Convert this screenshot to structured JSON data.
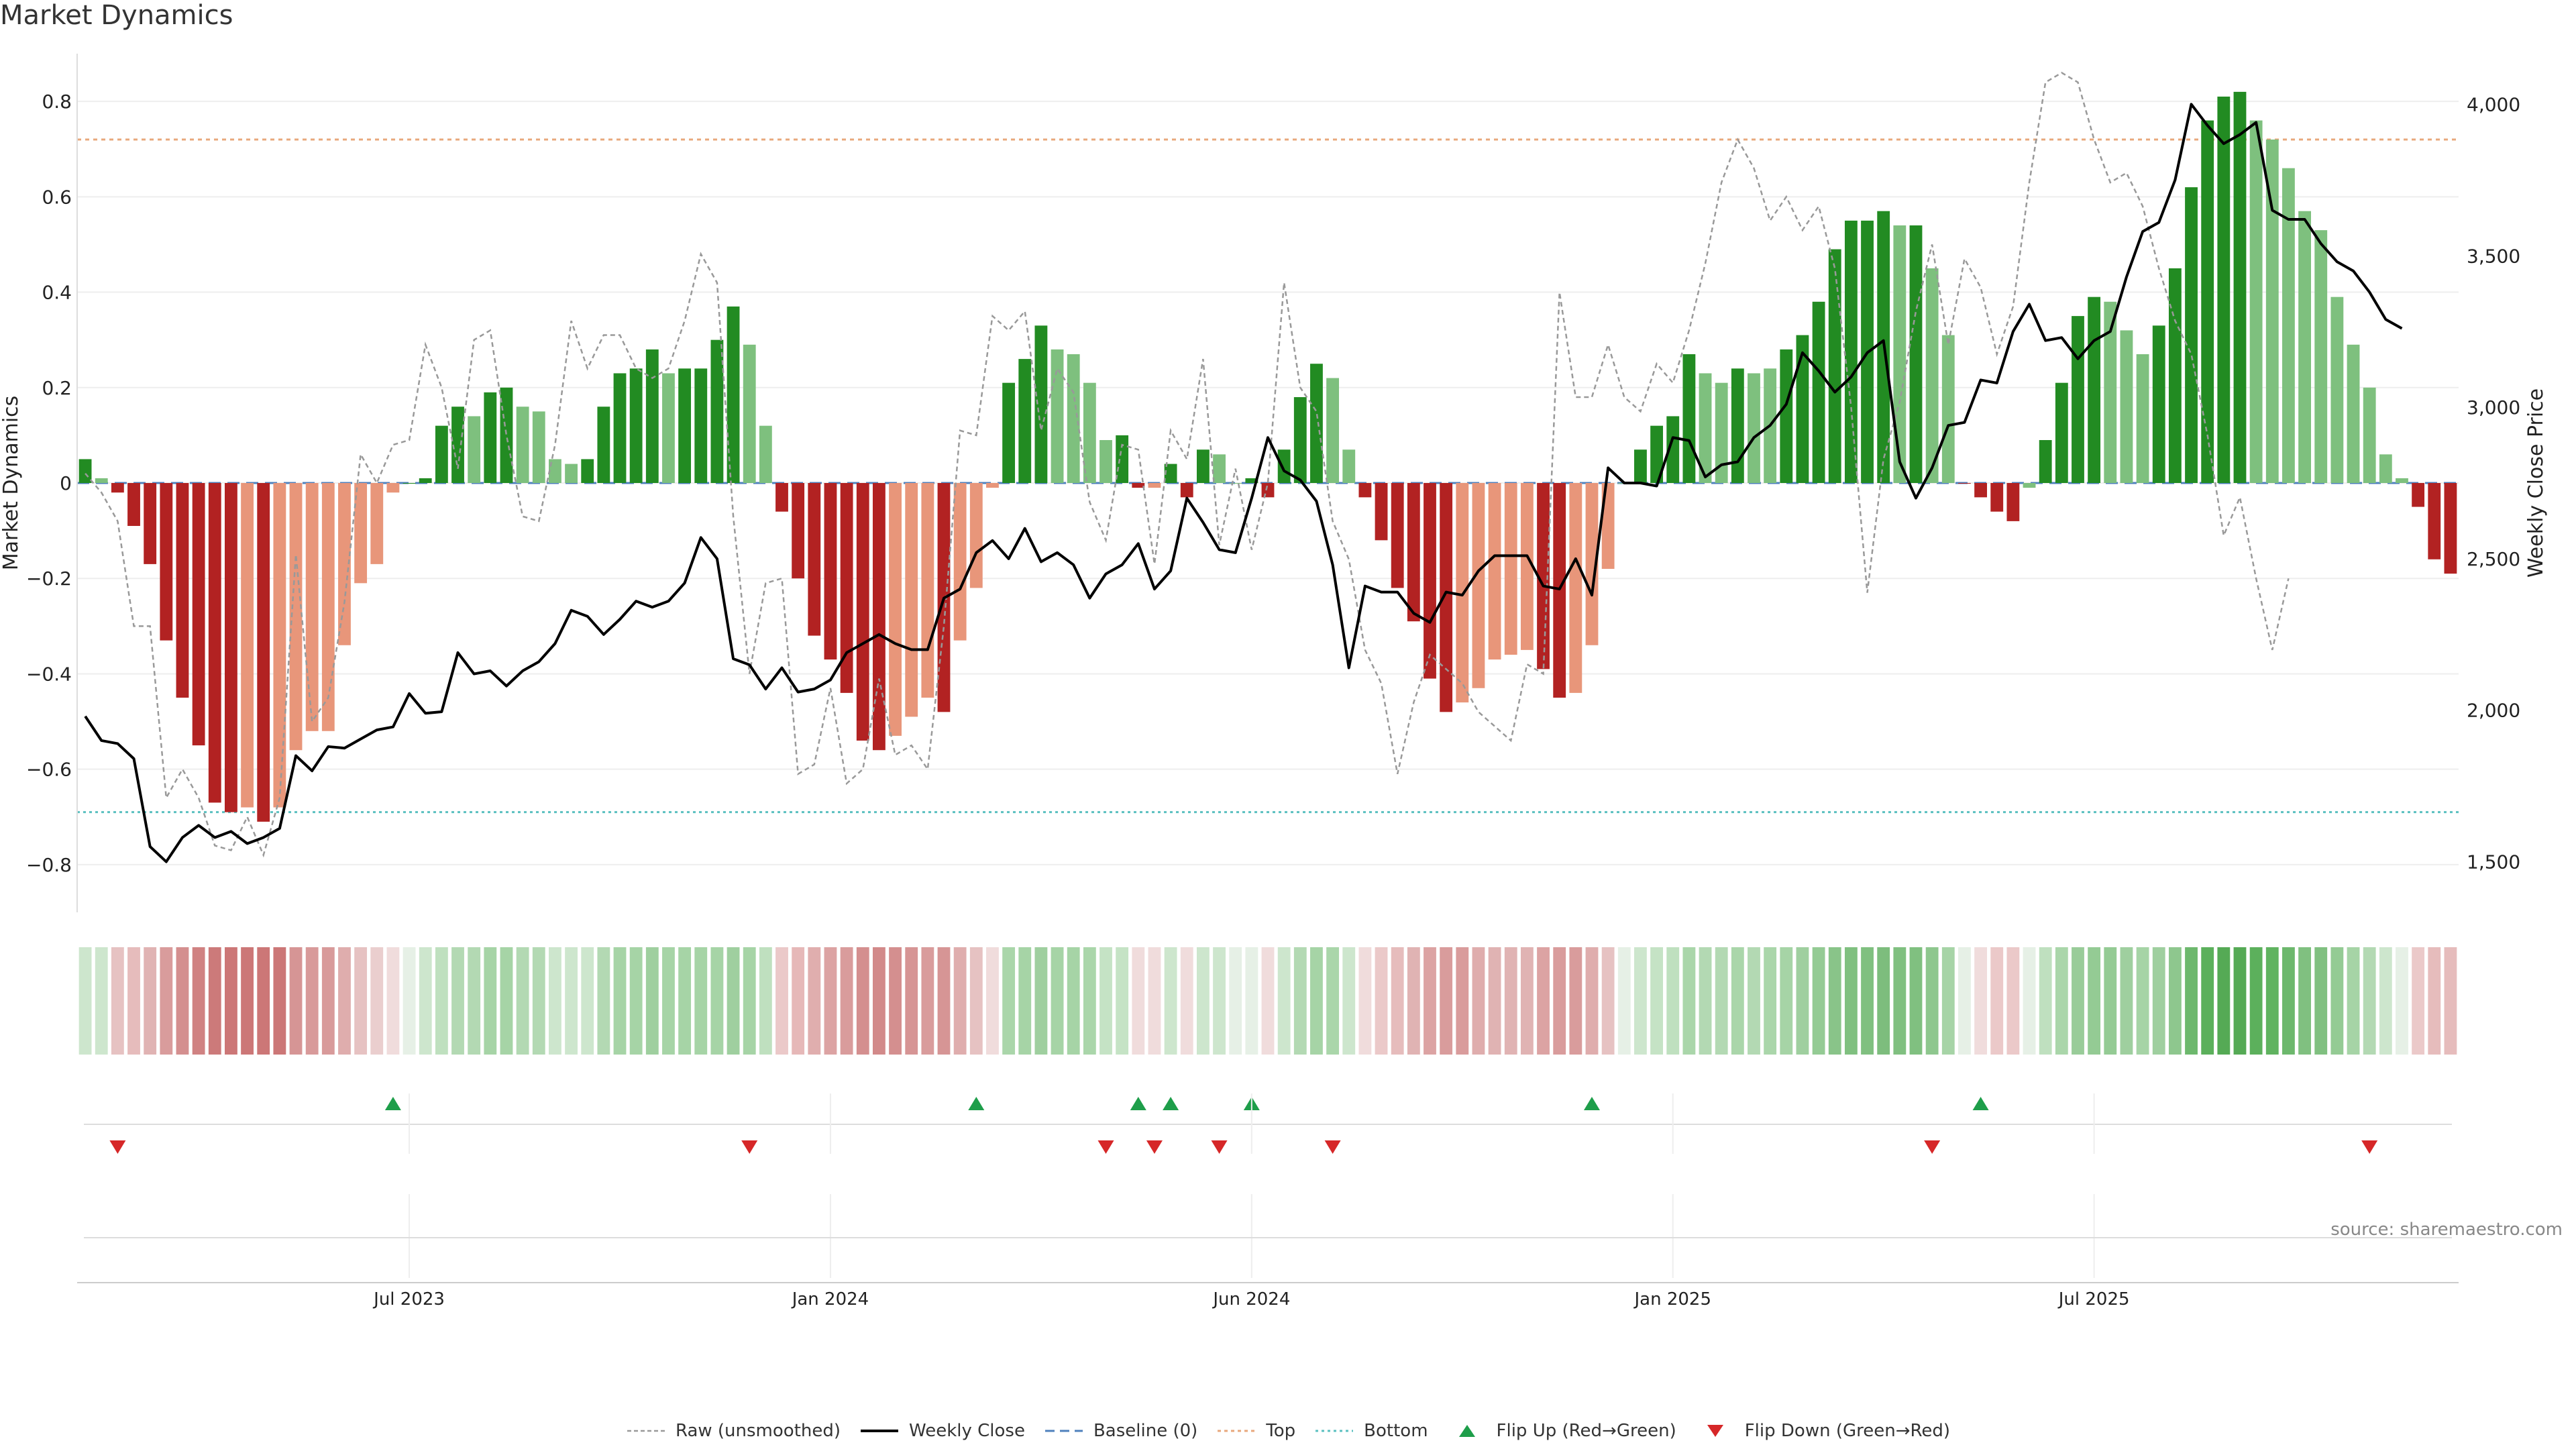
{
  "chart_data": {
    "type": "bar",
    "title": "Market Dynamics",
    "ylabel": "Market Dynamics",
    "y2label": "Weekly Close Price",
    "ylim": [
      -0.9,
      0.9
    ],
    "y2lim": [
      1333,
      4167
    ],
    "y_ticks": [
      -0.8,
      -0.6,
      -0.4,
      -0.2,
      0,
      0.2,
      0.4,
      0.6,
      0.8
    ],
    "y2_ticks": [
      1500,
      2000,
      2500,
      3000,
      3500,
      4000
    ],
    "x_ticks": [
      {
        "label": "Jul 2023",
        "week": 20
      },
      {
        "label": "Jan 2024",
        "week": 46
      },
      {
        "label": "Jun 2024",
        "week": 72
      },
      {
        "label": "Jan 2025",
        "week": 98
      },
      {
        "label": "Jul 2025",
        "week": 124
      }
    ],
    "top_line": 0.72,
    "bottom_line": -0.69,
    "bars": [
      0.05,
      0.01,
      -0.02,
      -0.09,
      -0.17,
      -0.33,
      -0.45,
      -0.55,
      -0.67,
      -0.69,
      -0.68,
      -0.71,
      -0.68,
      -0.56,
      -0.52,
      -0.52,
      -0.34,
      -0.21,
      -0.17,
      -0.02,
      0.0,
      0.01,
      0.12,
      0.16,
      0.14,
      0.19,
      0.2,
      0.16,
      0.15,
      0.05,
      0.04,
      0.05,
      0.16,
      0.23,
      0.24,
      0.28,
      0.23,
      0.24,
      0.24,
      0.3,
      0.37,
      0.29,
      0.12,
      -0.06,
      -0.2,
      -0.32,
      -0.37,
      -0.44,
      -0.54,
      -0.56,
      -0.53,
      -0.49,
      -0.45,
      -0.48,
      -0.33,
      -0.22,
      -0.01,
      0.21,
      0.26,
      0.33,
      0.28,
      0.27,
      0.21,
      0.09,
      0.1,
      -0.01,
      -0.01,
      0.04,
      -0.03,
      0.07,
      0.06,
      0.0,
      0.01,
      -0.03,
      0.07,
      0.18,
      0.25,
      0.22,
      0.07,
      -0.03,
      -0.12,
      -0.22,
      -0.29,
      -0.41,
      -0.48,
      -0.46,
      -0.43,
      -0.37,
      -0.36,
      -0.35,
      -0.39,
      -0.45,
      -0.44,
      -0.34,
      -0.18,
      0.0,
      0.07,
      0.12,
      0.14,
      0.27,
      0.23,
      0.21,
      0.24,
      0.23,
      0.24,
      0.28,
      0.31,
      0.38,
      0.49,
      0.55,
      0.55,
      0.57,
      0.54,
      0.54,
      0.45,
      0.31,
      0.0,
      -0.03,
      -0.06,
      -0.08,
      -0.01,
      0.09,
      0.21,
      0.35,
      0.39,
      0.38,
      0.32,
      0.27,
      0.33,
      0.45,
      0.62,
      0.76,
      0.81,
      0.82,
      0.76,
      0.72,
      0.66,
      0.57,
      0.53,
      0.39,
      0.29,
      0.2,
      0.06,
      0.01,
      -0.05,
      -0.16,
      -0.19
    ],
    "bar_colors": [
      "#228b22",
      "#7ec07e",
      "#b22222",
      "#b22222",
      "#b22222",
      "#b22222",
      "#b22222",
      "#b22222",
      "#b22222",
      "#b22222",
      "#e8967a",
      "#b22222",
      "#e8967a",
      "#e8967a",
      "#e8967a",
      "#e8967a",
      "#e8967a",
      "#e8967a",
      "#e8967a",
      "#e8967a",
      "#228b22",
      "#228b22",
      "#228b22",
      "#228b22",
      "#7ec07e",
      "#228b22",
      "#228b22",
      "#7ec07e",
      "#7ec07e",
      "#7ec07e",
      "#7ec07e",
      "#228b22",
      "#228b22",
      "#228b22",
      "#228b22",
      "#228b22",
      "#7ec07e",
      "#228b22",
      "#228b22",
      "#228b22",
      "#228b22",
      "#7ec07e",
      "#7ec07e",
      "#b22222",
      "#b22222",
      "#b22222",
      "#b22222",
      "#b22222",
      "#b22222",
      "#b22222",
      "#e8967a",
      "#e8967a",
      "#e8967a",
      "#b22222",
      "#e8967a",
      "#e8967a",
      "#e8967a",
      "#228b22",
      "#228b22",
      "#228b22",
      "#7ec07e",
      "#7ec07e",
      "#7ec07e",
      "#7ec07e",
      "#228b22",
      "#b22222",
      "#e8967a",
      "#228b22",
      "#b22222",
      "#228b22",
      "#7ec07e",
      "#7ec07e",
      "#228b22",
      "#b22222",
      "#228b22",
      "#228b22",
      "#228b22",
      "#7ec07e",
      "#7ec07e",
      "#b22222",
      "#b22222",
      "#b22222",
      "#b22222",
      "#b22222",
      "#b22222",
      "#e8967a",
      "#e8967a",
      "#e8967a",
      "#e8967a",
      "#e8967a",
      "#b22222",
      "#b22222",
      "#e8967a",
      "#e8967a",
      "#e8967a",
      "#7ec07e",
      "#228b22",
      "#228b22",
      "#228b22",
      "#228b22",
      "#7ec07e",
      "#7ec07e",
      "#228b22",
      "#7ec07e",
      "#7ec07e",
      "#228b22",
      "#228b22",
      "#228b22",
      "#228b22",
      "#228b22",
      "#228b22",
      "#228b22",
      "#7ec07e",
      "#228b22",
      "#7ec07e",
      "#7ec07e",
      "#b22222",
      "#b22222",
      "#b22222",
      "#b22222",
      "#7ec07e",
      "#228b22",
      "#228b22",
      "#228b22",
      "#228b22",
      "#7ec07e",
      "#7ec07e",
      "#7ec07e",
      "#228b22",
      "#228b22",
      "#228b22",
      "#228b22",
      "#228b22",
      "#228b22",
      "#7ec07e",
      "#7ec07e",
      "#7ec07e",
      "#7ec07e",
      "#7ec07e",
      "#7ec07e",
      "#7ec07e",
      "#7ec07e",
      "#7ec07e",
      "#7ec07e",
      "#b22222",
      "#b22222",
      "#b22222"
    ],
    "raw": [
      0.02,
      -0.02,
      -0.08,
      -0.3,
      -0.3,
      -0.66,
      -0.6,
      -0.66,
      -0.76,
      -0.77,
      -0.7,
      -0.78,
      -0.66,
      -0.15,
      -0.5,
      -0.45,
      -0.25,
      0.06,
      0.0,
      0.08,
      0.09,
      0.29,
      0.2,
      0.03,
      0.3,
      0.32,
      0.1,
      -0.07,
      -0.08,
      0.08,
      0.34,
      0.24,
      0.31,
      0.31,
      0.24,
      0.22,
      0.24,
      0.34,
      0.48,
      0.42,
      -0.07,
      -0.4,
      -0.21,
      -0.2,
      -0.61,
      -0.59,
      -0.43,
      -0.63,
      -0.6,
      -0.41,
      -0.57,
      -0.55,
      -0.6,
      -0.3,
      0.11,
      0.1,
      0.35,
      0.32,
      0.36,
      0.11,
      0.24,
      0.19,
      -0.04,
      -0.12,
      0.08,
      0.07,
      -0.17,
      0.11,
      0.05,
      0.26,
      -0.13,
      0.03,
      -0.14,
      0.0,
      0.42,
      0.2,
      0.15,
      -0.08,
      -0.16,
      -0.35,
      -0.42,
      -0.61,
      -0.46,
      -0.36,
      -0.39,
      -0.42,
      -0.48,
      -0.51,
      -0.54,
      -0.38,
      -0.4,
      0.4,
      0.18,
      0.18,
      0.29,
      0.18,
      0.15,
      0.25,
      0.21,
      0.32,
      0.46,
      0.63,
      0.72,
      0.66,
      0.55,
      0.6,
      0.53,
      0.58,
      0.45,
      0.16,
      -0.23,
      0.05,
      0.17,
      0.36,
      0.5,
      0.29,
      0.47,
      0.41,
      0.27,
      0.37,
      0.63,
      0.84,
      0.86,
      0.84,
      0.72,
      0.63,
      0.65,
      0.58,
      0.45,
      0.34,
      0.27,
      0.1,
      -0.11,
      -0.03,
      -0.2,
      -0.35,
      -0.2
    ],
    "weekly_close": [
      1980,
      1900,
      1890,
      1840,
      1550,
      1500,
      1580,
      1620,
      1580,
      1600,
      1560,
      1580,
      1610,
      1850,
      1800,
      1880,
      1875,
      1905,
      1935,
      1945,
      2055,
      1990,
      1995,
      2190,
      2120,
      2130,
      2080,
      2130,
      2160,
      2220,
      2330,
      2310,
      2250,
      2300,
      2360,
      2340,
      2360,
      2420,
      2570,
      2500,
      2170,
      2150,
      2070,
      2140,
      2060,
      2070,
      2100,
      2190,
      2220,
      2250,
      2220,
      2200,
      2200,
      2370,
      2400,
      2520,
      2560,
      2500,
      2600,
      2490,
      2520,
      2480,
      2370,
      2450,
      2480,
      2550,
      2400,
      2460,
      2700,
      2620,
      2530,
      2520,
      2700,
      2900,
      2790,
      2760,
      2690,
      2480,
      2140,
      2410,
      2390,
      2390,
      2320,
      2290,
      2390,
      2380,
      2460,
      2510,
      2510,
      2510,
      2410,
      2400,
      2500,
      2380,
      2800,
      2750,
      2750,
      2740,
      2900,
      2890,
      2770,
      2810,
      2820,
      2900,
      2940,
      3010,
      3180,
      3120,
      3050,
      3100,
      3180,
      3220,
      2820,
      2700,
      2800,
      2940,
      2950,
      3090,
      3080,
      3250,
      3340,
      3220,
      3230,
      3160,
      3220,
      3250,
      3430,
      3580,
      3610,
      3750,
      4000,
      3930,
      3870,
      3900,
      3940,
      3650,
      3620,
      3620,
      3540,
      3480,
      3450,
      3380,
      3290,
      3260
    ],
    "heat_colors": [
      "#cde6cd",
      "#cde6cd",
      "#e6c2c2",
      "#e6bcbc",
      "#e0b3b3",
      "#d99c9c",
      "#d48f8f",
      "#d08282",
      "#cc7a7a",
      "#cc7777",
      "#cc7777",
      "#cc7777",
      "#cc7777",
      "#d69595",
      "#d89a9a",
      "#d89a9a",
      "#dfadad",
      "#e6c2c2",
      "#eacece",
      "#f0dcdc",
      "#e6f0e6",
      "#cde6cd",
      "#bfe0bf",
      "#b3d9b3",
      "#b3d9b3",
      "#a6d4a6",
      "#a6d4a6",
      "#b3d9b3",
      "#b3d9b3",
      "#cde6cd",
      "#cde6cd",
      "#cde6cd",
      "#b3d9b3",
      "#a6d4a6",
      "#a6d4a6",
      "#9fcf9f",
      "#a6d4a6",
      "#a6d4a6",
      "#a6d4a6",
      "#a6d4a6",
      "#9fcf9f",
      "#a6d4a6",
      "#bfe0bf",
      "#ebc9c9",
      "#e6b8b8",
      "#e0aeae",
      "#dca3a3",
      "#d99c9c",
      "#d48f8f",
      "#d28a8a",
      "#d48f8f",
      "#d69595",
      "#d99c9c",
      "#d69595",
      "#dfadad",
      "#e6c2c2",
      "#f0dcdc",
      "#aad6aa",
      "#a6d4a6",
      "#9fcf9f",
      "#a6d4a6",
      "#a6d4a6",
      "#aad6aa",
      "#c5e3c5",
      "#c5e3c5",
      "#f0dcdc",
      "#f0dcdc",
      "#cde6cd",
      "#f0dcdc",
      "#cde6cd",
      "#cde6cd",
      "#e6f0e6",
      "#e6f0e6",
      "#f0dcdc",
      "#cde6cd",
      "#b3d9b3",
      "#a6d4a6",
      "#aad6aa",
      "#cde6cd",
      "#f0dcdc",
      "#ebc9c9",
      "#e6bcbc",
      "#e0b3b3",
      "#dca3a3",
      "#d99c9c",
      "#d99c9c",
      "#dfadad",
      "#e0b3b3",
      "#e0b3b3",
      "#e0b3b3",
      "#dca3a3",
      "#d99c9c",
      "#d99c9c",
      "#dfadad",
      "#e6c2c2",
      "#e6f0e6",
      "#cde6cd",
      "#c5e3c5",
      "#bfe0bf",
      "#aad6aa",
      "#b3d9b3",
      "#b3d9b3",
      "#aad6aa",
      "#b3d9b3",
      "#aad6aa",
      "#a6d4a6",
      "#9fcf9f",
      "#94cb94",
      "#89c489",
      "#80c080",
      "#80c080",
      "#7dbd7d",
      "#80c080",
      "#80c080",
      "#8ec78e",
      "#a6d4a6",
      "#e6f0e6",
      "#f0dcdc",
      "#ebc9c9",
      "#ebc9c9",
      "#e6f0e6",
      "#bfe0bf",
      "#aad6aa",
      "#99cc99",
      "#94cb94",
      "#94cb94",
      "#9fcf9f",
      "#a6d4a6",
      "#9fcf9f",
      "#8ec78e",
      "#6db86d",
      "#5cb05c",
      "#55aa55",
      "#55aa55",
      "#5cb05c",
      "#60b360",
      "#6db86d",
      "#80c080",
      "#80c080",
      "#94cb94",
      "#a6d4a6",
      "#b3d9b3",
      "#cde6cd",
      "#e6f0e6",
      "#ebc9c9",
      "#e6bcbc",
      "#e6bcbc"
    ],
    "flip_up_weeks": [
      19,
      55,
      65,
      67,
      72,
      93,
      117
    ],
    "flip_down_weeks": [
      2,
      41,
      63,
      66,
      70,
      77,
      114,
      141
    ],
    "legend": [
      {
        "label": "Raw (unsmoothed)",
        "style": "raw"
      },
      {
        "label": "Weekly Close",
        "style": "close"
      },
      {
        "label": "Baseline (0)",
        "style": "baseline"
      },
      {
        "label": "Top",
        "style": "top"
      },
      {
        "label": "Bottom",
        "style": "bottom"
      },
      {
        "label": "Flip Up (Red→Green)",
        "style": "flipup"
      },
      {
        "label": "Flip Down (Green→Red)",
        "style": "flipdown"
      }
    ],
    "legend_position": "bottom-center",
    "colors": {
      "strong_green": "#228b22",
      "light_green": "#7ec07e",
      "strong_red": "#b22222",
      "light_red": "#e8967a",
      "raw": "#999999",
      "close": "#000000",
      "baseline": "#4f81bd",
      "top": "#e8a87c",
      "bottom": "#5bc0c0",
      "flip_up": "#1e9e4a",
      "flip_down": "#d62728",
      "grid": "#eeeeee"
    },
    "source": "source: sharemaestro.com"
  }
}
